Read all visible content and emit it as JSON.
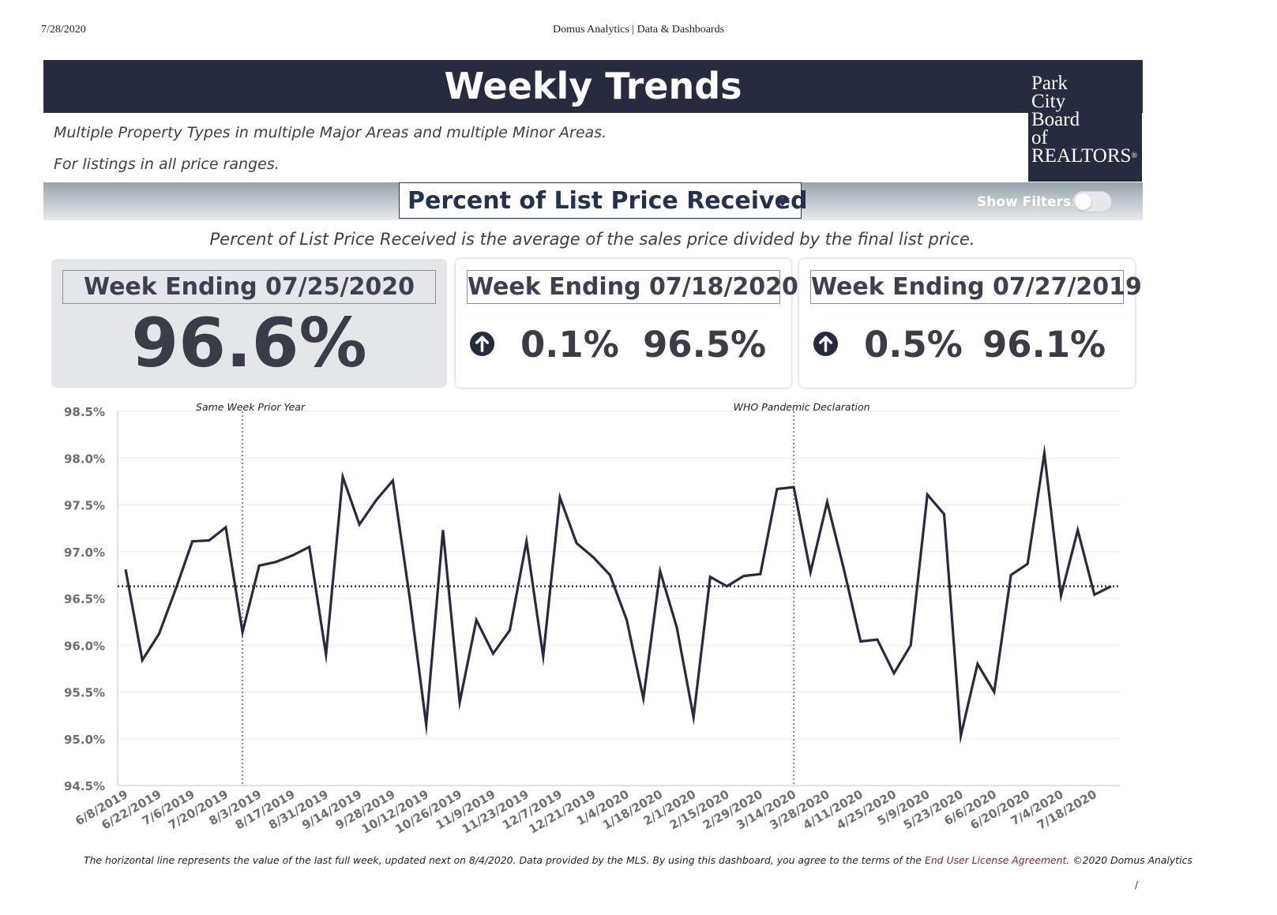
{
  "print_header": {
    "date": "7/28/2020",
    "title": "Domus Analytics | Data & Dashboards"
  },
  "title": "Weekly Trends",
  "logo": {
    "lines": [
      "Park",
      "City",
      "Board",
      "of",
      "REALTORS"
    ],
    "mark": "®"
  },
  "subtitle_lines": [
    "Multiple Property Types in multiple Major Areas and multiple Minor Areas.",
    "For listings in all price ranges."
  ],
  "metric_selector": {
    "label": "Percent of List Price Received",
    "icon": "caret-down-icon"
  },
  "show_filters": {
    "label": "Show Filters:",
    "on": false
  },
  "definition": "Percent of List Price Received is the average of the sales price divided by the final list price.",
  "cards": {
    "current": {
      "heading": "Week Ending 07/25/2020",
      "value": "96.6%"
    },
    "previous_week": {
      "heading": "Week Ending 07/18/2020",
      "icon": "arrow-up-circle-icon",
      "change": "0.1%",
      "value": "96.5%"
    },
    "prior_year": {
      "heading": "Week Ending 07/27/2019",
      "icon": "arrow-up-circle-icon",
      "change": "0.5%",
      "value": "96.1%"
    }
  },
  "chart_data": {
    "type": "line",
    "title": "",
    "xlabel": "",
    "ylabel": "",
    "ylim": [
      94.5,
      98.5
    ],
    "yticks": [
      98.5,
      98.0,
      97.5,
      97.0,
      96.5,
      96.0,
      95.5,
      95.0,
      94.5
    ],
    "ytick_labels": [
      "98.5%",
      "98.0%",
      "97.5%",
      "97.0%",
      "96.5%",
      "96.0%",
      "95.5%",
      "95.0%",
      "94.5%"
    ],
    "grid": true,
    "x_tick_labels": [
      "6/8/2019",
      "6/22/2019",
      "7/6/2019",
      "7/20/2019",
      "8/3/2019",
      "8/17/2019",
      "8/31/2019",
      "9/14/2019",
      "9/28/2019",
      "10/12/2019",
      "10/26/2019",
      "11/9/2019",
      "11/23/2019",
      "12/7/2019",
      "12/21/2019",
      "1/4/2020",
      "1/18/2020",
      "2/1/2020",
      "2/15/2020",
      "2/29/2020",
      "3/14/2020",
      "3/28/2020",
      "4/11/2020",
      "4/25/2020",
      "5/9/2020",
      "5/23/2020",
      "6/6/2020",
      "6/20/2020",
      "7/4/2020",
      "7/18/2020"
    ],
    "x": [
      "6/8/2019",
      "6/15/2019",
      "6/22/2019",
      "6/29/2019",
      "7/6/2019",
      "7/13/2019",
      "7/20/2019",
      "7/27/2019",
      "8/3/2019",
      "8/10/2019",
      "8/17/2019",
      "8/24/2019",
      "8/31/2019",
      "9/7/2019",
      "9/14/2019",
      "9/21/2019",
      "9/28/2019",
      "10/5/2019",
      "10/12/2019",
      "10/19/2019",
      "10/26/2019",
      "11/2/2019",
      "11/9/2019",
      "11/16/2019",
      "11/23/2019",
      "11/30/2019",
      "12/7/2019",
      "12/14/2019",
      "12/21/2019",
      "12/28/2019",
      "1/4/2020",
      "1/11/2020",
      "1/18/2020",
      "1/25/2020",
      "2/1/2020",
      "2/8/2020",
      "2/15/2020",
      "2/22/2020",
      "2/29/2020",
      "3/7/2020",
      "3/14/2020",
      "3/21/2020",
      "3/28/2020",
      "4/4/2020",
      "4/11/2020",
      "4/18/2020",
      "4/25/2020",
      "5/2/2020",
      "5/9/2020",
      "5/16/2020",
      "5/23/2020",
      "5/30/2020",
      "6/6/2020",
      "6/13/2020",
      "6/20/2020",
      "6/27/2020",
      "7/4/2020",
      "7/11/2020",
      "7/18/2020",
      "7/25/2020"
    ],
    "values": [
      96.81,
      95.84,
      96.12,
      96.6,
      97.11,
      97.12,
      97.26,
      96.14,
      96.85,
      96.89,
      96.96,
      97.05,
      95.9,
      97.8,
      97.29,
      97.55,
      97.76,
      96.52,
      95.15,
      97.23,
      95.39,
      96.27,
      95.91,
      96.16,
      97.11,
      95.88,
      97.58,
      97.09,
      96.94,
      96.75,
      96.27,
      95.43,
      96.79,
      96.19,
      95.23,
      96.73,
      96.63,
      96.74,
      96.76,
      97.67,
      97.69,
      96.78,
      97.53,
      96.81,
      96.04,
      96.06,
      95.7,
      96.0,
      97.61,
      97.4,
      95.03,
      95.8,
      95.5,
      96.75,
      96.87,
      98.05,
      96.53,
      97.23,
      96.54,
      96.63
    ],
    "reference_line": {
      "value": 96.63,
      "style": "dotted"
    },
    "annotations": [
      {
        "x": "7/27/2019",
        "label": "Same Week Prior Year"
      },
      {
        "x": "3/14/2020",
        "label": "WHO Pandemic Declaration"
      }
    ],
    "colors": {
      "line": "#262b3f",
      "grid": "#ebebeb",
      "annotation": "#888888"
    }
  },
  "footnote": {
    "text": "The horizontal line represents the value of the last full week, updated next on 8/4/2020.  Data provided by the MLS. By using this dashboard, you agree to the terms of the ",
    "link": "End User License Agreement",
    "suffix": ".  ©2020 Domus Analytics"
  },
  "page_marker": "/"
}
